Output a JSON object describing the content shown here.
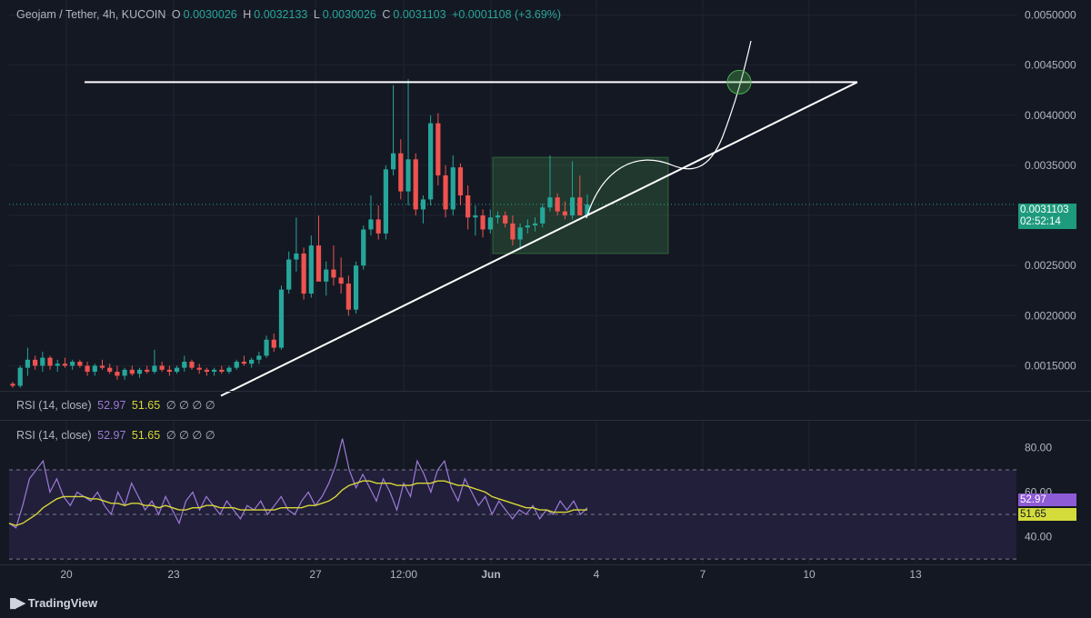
{
  "header": {
    "symbol": "Geojam / Tether, 4h, KUCOIN",
    "open_label": "O",
    "open": "0.0030026",
    "high_label": "H",
    "high": "0.0032133",
    "low_label": "L",
    "low": "0.0030026",
    "close_label": "C",
    "close": "0.0031103",
    "change": "+0.0001108 (+3.69%)"
  },
  "rsi_legend": {
    "name": "RSI (14, close)",
    "rsi": "52.97",
    "ma": "51.65",
    "extra": "∅ ∅ ∅ ∅"
  },
  "price_tags": {
    "last_price": "0.0031103",
    "countdown": "02:52:14",
    "rsi_value": "52.97",
    "rsi_ma_value": "51.65"
  },
  "footer": {
    "brand": "TradingView"
  },
  "colors": {
    "up": "#26a69a",
    "down": "#ef5350",
    "rsi": "#9c7bd8",
    "rsi_ma": "#d7d836",
    "box": "#1d3a2b",
    "band": "#221f3a"
  },
  "chart_data": [
    {
      "type": "candlestick",
      "title": "Geojam / Tether, 4h, KUCOIN",
      "x_ticks": [
        "20",
        "23",
        "27",
        "12:00",
        "Jun",
        "4",
        "7",
        "10",
        "13"
      ],
      "y_ticks": [
        "0.0050000",
        "0.0045000",
        "0.0040000",
        "0.0035000",
        "0.0030000",
        "0.0025000",
        "0.0020000",
        "0.0015000"
      ],
      "ylim": [
        0.00125,
        0.00515
      ],
      "last_price": 0.0031103,
      "drawings": {
        "resistance_line": {
          "from": [
            "20",
            0.00433
          ],
          "to": [
            "11",
            0.00433
          ]
        },
        "ascending_trendline": {
          "from": [
            "24.5",
            0.0012
          ],
          "to": [
            "11",
            0.00433
          ]
        },
        "accumulation_box": {
          "price_top": 0.00358,
          "price_bottom": 0.00262
        },
        "projection_curve": true,
        "breakout_circle": {
          "price": 0.00433
        }
      },
      "candles_approx": [
        [
          0.00132,
          0.00134,
          0.00128,
          0.0013
        ],
        [
          0.0013,
          0.0015,
          0.00128,
          0.00148
        ],
        [
          0.00148,
          0.00168,
          0.0014,
          0.00156
        ],
        [
          0.00156,
          0.0016,
          0.00146,
          0.0015
        ],
        [
          0.0015,
          0.00164,
          0.00144,
          0.00158
        ],
        [
          0.00158,
          0.0016,
          0.00146,
          0.0015
        ],
        [
          0.0015,
          0.00156,
          0.00144,
          0.00152
        ],
        [
          0.00152,
          0.00158,
          0.00148,
          0.0015
        ],
        [
          0.0015,
          0.00156,
          0.00146,
          0.00154
        ],
        [
          0.00154,
          0.00156,
          0.00148,
          0.0015
        ],
        [
          0.0015,
          0.00154,
          0.0014,
          0.00144
        ],
        [
          0.00144,
          0.00152,
          0.0014,
          0.0015
        ],
        [
          0.0015,
          0.00156,
          0.00146,
          0.00148
        ],
        [
          0.00148,
          0.00152,
          0.00142,
          0.00144
        ],
        [
          0.00144,
          0.0015,
          0.00136,
          0.0014
        ],
        [
          0.0014,
          0.00148,
          0.00136,
          0.00146
        ],
        [
          0.00146,
          0.0015,
          0.0014,
          0.00142
        ],
        [
          0.00142,
          0.00148,
          0.00138,
          0.00146
        ],
        [
          0.00146,
          0.0015,
          0.00142,
          0.00144
        ],
        [
          0.00144,
          0.00166,
          0.00142,
          0.0015
        ],
        [
          0.0015,
          0.00154,
          0.00144,
          0.00146
        ],
        [
          0.00146,
          0.0015,
          0.0014,
          0.00144
        ],
        [
          0.00144,
          0.0015,
          0.00142,
          0.00148
        ],
        [
          0.00148,
          0.0016,
          0.00144,
          0.00154
        ],
        [
          0.00154,
          0.00156,
          0.00146,
          0.00148
        ],
        [
          0.00148,
          0.00152,
          0.00142,
          0.00146
        ],
        [
          0.00146,
          0.00148,
          0.0014,
          0.00144
        ],
        [
          0.00144,
          0.00148,
          0.0014,
          0.00146
        ],
        [
          0.00146,
          0.0015,
          0.00142,
          0.00144
        ],
        [
          0.00144,
          0.0015,
          0.00142,
          0.00148
        ],
        [
          0.00148,
          0.00156,
          0.00146,
          0.00154
        ],
        [
          0.00154,
          0.0016,
          0.0015,
          0.00152
        ],
        [
          0.00152,
          0.00158,
          0.00148,
          0.00156
        ],
        [
          0.00156,
          0.00164,
          0.00152,
          0.0016
        ],
        [
          0.0016,
          0.0018,
          0.00158,
          0.00176
        ],
        [
          0.00176,
          0.00182,
          0.00164,
          0.00168
        ],
        [
          0.00168,
          0.0023,
          0.00166,
          0.00226
        ],
        [
          0.00226,
          0.00264,
          0.00222,
          0.00256
        ],
        [
          0.00256,
          0.00298,
          0.00244,
          0.00262
        ],
        [
          0.00262,
          0.00268,
          0.00216,
          0.00222
        ],
        [
          0.00222,
          0.0028,
          0.00218,
          0.0027
        ],
        [
          0.0027,
          0.003,
          0.00262,
          0.00234
        ],
        [
          0.00234,
          0.00254,
          0.0022,
          0.00246
        ],
        [
          0.00246,
          0.0027,
          0.0023,
          0.00238
        ],
        [
          0.00238,
          0.00258,
          0.00222,
          0.00232
        ],
        [
          0.00232,
          0.0024,
          0.002,
          0.00206
        ],
        [
          0.00206,
          0.00254,
          0.00202,
          0.0025
        ],
        [
          0.0025,
          0.0029,
          0.00246,
          0.00286
        ],
        [
          0.00286,
          0.0032,
          0.0028,
          0.00296
        ],
        [
          0.00296,
          0.0031,
          0.00276,
          0.00282
        ],
        [
          0.00282,
          0.0035,
          0.00276,
          0.00346
        ],
        [
          0.00346,
          0.0043,
          0.0034,
          0.00362
        ],
        [
          0.00362,
          0.00376,
          0.00316,
          0.00324
        ],
        [
          0.00324,
          0.00436,
          0.0031,
          0.00356
        ],
        [
          0.00356,
          0.00362,
          0.003,
          0.00306
        ],
        [
          0.00306,
          0.0032,
          0.00292,
          0.00316
        ],
        [
          0.00316,
          0.004,
          0.0031,
          0.00392
        ],
        [
          0.00392,
          0.00402,
          0.0033,
          0.0034
        ],
        [
          0.0034,
          0.0035,
          0.00298,
          0.00306
        ],
        [
          0.00306,
          0.0036,
          0.003,
          0.00348
        ],
        [
          0.00348,
          0.00352,
          0.0031,
          0.0032
        ],
        [
          0.0032,
          0.0033,
          0.00286,
          0.00298
        ],
        [
          0.00298,
          0.0031,
          0.0028,
          0.003
        ],
        [
          0.003,
          0.00306,
          0.00278,
          0.00286
        ],
        [
          0.00286,
          0.00306,
          0.00282,
          0.00298
        ],
        [
          0.00298,
          0.00304,
          0.00292,
          0.003
        ],
        [
          0.003,
          0.00304,
          0.00288,
          0.00292
        ],
        [
          0.00292,
          0.003,
          0.0027,
          0.00276
        ],
        [
          0.00276,
          0.00292,
          0.00266,
          0.00288
        ],
        [
          0.00288,
          0.00296,
          0.00282,
          0.0029
        ],
        [
          0.0029,
          0.00298,
          0.00284,
          0.00292
        ],
        [
          0.00292,
          0.00312,
          0.00288,
          0.00308
        ],
        [
          0.00308,
          0.0036,
          0.00304,
          0.00318
        ],
        [
          0.00318,
          0.00322,
          0.003,
          0.00304
        ],
        [
          0.00304,
          0.00314,
          0.00296,
          0.003
        ],
        [
          0.003,
          0.00354,
          0.00296,
          0.00318
        ],
        [
          0.00318,
          0.0034,
          0.00306,
          0.003
        ],
        [
          0.003,
          0.00321,
          0.003,
          0.00311
        ]
      ]
    },
    {
      "type": "line",
      "title": "RSI (14, close)",
      "y_ticks": [
        "80.00",
        "60.00",
        "40.00"
      ],
      "ylim": [
        28,
        92
      ],
      "bands": {
        "upper": 70,
        "middle": 50,
        "lower": 30
      },
      "series": [
        {
          "name": "RSI (14, close)",
          "color": "#9c7bd8",
          "values": [
            46,
            44,
            54,
            66,
            70,
            74,
            60,
            66,
            58,
            54,
            60,
            58,
            56,
            60,
            54,
            50,
            60,
            54,
            64,
            58,
            52,
            56,
            50,
            58,
            52,
            46,
            56,
            60,
            52,
            58,
            54,
            50,
            56,
            52,
            48,
            54,
            52,
            56,
            50,
            54,
            58,
            52,
            50,
            56,
            60,
            54,
            58,
            64,
            72,
            84,
            70,
            62,
            68,
            62,
            56,
            66,
            60,
            52,
            64,
            58,
            74,
            68,
            60,
            70,
            74,
            62,
            56,
            66,
            60,
            54,
            58,
            50,
            56,
            52,
            48,
            52,
            50,
            54,
            48,
            52,
            50,
            56,
            52,
            56,
            50,
            53
          ]
        },
        {
          "name": "RSI MA",
          "color": "#d7d836",
          "values": [
            46,
            45,
            46,
            48,
            50,
            53,
            55,
            57,
            58,
            58,
            58,
            58,
            57,
            57,
            56,
            55,
            55,
            54,
            55,
            55,
            54,
            54,
            53,
            54,
            53,
            52,
            52,
            53,
            53,
            54,
            54,
            53,
            53,
            53,
            52,
            52,
            52,
            52,
            52,
            52,
            53,
            53,
            53,
            53,
            54,
            54,
            55,
            56,
            58,
            61,
            63,
            64,
            65,
            65,
            64,
            64,
            64,
            63,
            63,
            63,
            64,
            64,
            64,
            65,
            65,
            64,
            63,
            63,
            62,
            61,
            60,
            58,
            57,
            56,
            55,
            54,
            53,
            53,
            52,
            52,
            51,
            51,
            51,
            52,
            52,
            52
          ]
        }
      ]
    }
  ]
}
